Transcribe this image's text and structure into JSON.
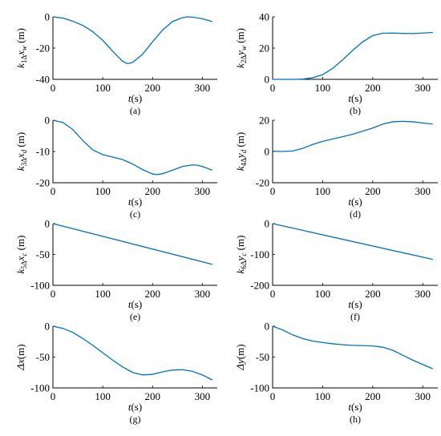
{
  "chart_data": [
    {
      "type": "line",
      "caption": "(a)",
      "xlabel": "t(s)",
      "ylabel": "k1Δ xw (m)",
      "ylabel_parts": {
        "k": "k",
        "sub": "1Δ",
        "var": "x",
        "varsub": "w",
        "unit": " (m)"
      },
      "xlim": [
        0,
        330
      ],
      "ylim": [
        -40,
        0
      ],
      "xticks": [
        0,
        100,
        200,
        300
      ],
      "yticks": [
        -40,
        -20,
        0
      ],
      "series": [
        {
          "color": "#0072BD",
          "x": [
            0,
            20,
            40,
            60,
            80,
            100,
            120,
            140,
            150,
            160,
            180,
            200,
            220,
            240,
            260,
            270,
            280,
            300,
            320
          ],
          "y": [
            0,
            -0.8,
            -2.8,
            -5.5,
            -9.5,
            -15,
            -22,
            -28.5,
            -30,
            -29.2,
            -24,
            -16,
            -8.5,
            -3,
            -0.5,
            0,
            -0.2,
            -1.2,
            -3
          ]
        }
      ]
    },
    {
      "type": "line",
      "caption": "(b)",
      "xlabel": "t(s)",
      "ylabel": "k2Δ yw (m)",
      "ylabel_parts": {
        "k": "k",
        "sub": "2Δ",
        "var": "y",
        "varsub": "w",
        "unit": " (m)"
      },
      "xlim": [
        0,
        330
      ],
      "ylim": [
        0,
        40
      ],
      "xticks": [
        0,
        100,
        200,
        300
      ],
      "yticks": [
        0,
        20,
        40
      ],
      "series": [
        {
          "color": "#0072BD",
          "x": [
            0,
            40,
            60,
            80,
            100,
            120,
            140,
            160,
            180,
            200,
            220,
            240,
            260,
            280,
            300,
            320
          ],
          "y": [
            0,
            0,
            0.2,
            1,
            3,
            7,
            12.5,
            18.5,
            24,
            28,
            29.5,
            29.6,
            29.4,
            29.3,
            29.6,
            30
          ]
        }
      ]
    },
    {
      "type": "line",
      "caption": "(c)",
      "xlabel": "t(s)",
      "ylabel": "k3Δ xd (m)",
      "ylabel_parts": {
        "k": "k",
        "sub": "3Δ",
        "var": "x",
        "varsub": "d",
        "unit": " (m)"
      },
      "xlim": [
        0,
        330
      ],
      "ylim": [
        -20,
        0
      ],
      "xticks": [
        0,
        100,
        200,
        300
      ],
      "yticks": [
        -20,
        -10,
        0
      ],
      "series": [
        {
          "color": "#0072BD",
          "x": [
            0,
            20,
            40,
            60,
            80,
            100,
            120,
            140,
            160,
            180,
            200,
            210,
            220,
            240,
            260,
            280,
            290,
            300,
            320
          ],
          "y": [
            0,
            -0.7,
            -3,
            -6.5,
            -9.5,
            -11,
            -11.8,
            -12.6,
            -14,
            -15.8,
            -17.2,
            -17.4,
            -17.1,
            -16,
            -14.8,
            -14.3,
            -14.4,
            -14.8,
            -16
          ]
        }
      ]
    },
    {
      "type": "line",
      "caption": "(d)",
      "xlabel": "t(s)",
      "ylabel": "k4Δ yd (m)",
      "ylabel_parts": {
        "k": "k",
        "sub": "4Δ",
        "var": "y",
        "varsub": "d",
        "unit": " (m)"
      },
      "xlim": [
        0,
        330
      ],
      "ylim": [
        -20,
        20
      ],
      "xticks": [
        0,
        100,
        200,
        300
      ],
      "yticks": [
        -20,
        0,
        20
      ],
      "series": [
        {
          "color": "#0072BD",
          "x": [
            0,
            20,
            40,
            60,
            80,
            100,
            120,
            140,
            160,
            180,
            200,
            220,
            240,
            260,
            280,
            300,
            320
          ],
          "y": [
            0.2,
            0,
            0.3,
            2,
            4.5,
            6.5,
            8,
            9.5,
            11,
            13,
            15,
            17.5,
            19,
            19.3,
            19,
            18.2,
            17.5
          ]
        }
      ]
    },
    {
      "type": "line",
      "caption": "(e)",
      "xlabel": "t(s)",
      "ylabel": "k5Δ xc (m)",
      "ylabel_parts": {
        "k": "k",
        "sub": "5Δ",
        "var": "x",
        "varsub": "c",
        "unit": " (m)"
      },
      "xlim": [
        0,
        330
      ],
      "ylim": [
        -100,
        0
      ],
      "xticks": [
        0,
        100,
        200,
        300
      ],
      "yticks": [
        -100,
        -50,
        0
      ],
      "series": [
        {
          "color": "#0072BD",
          "x": [
            0,
            320
          ],
          "y": [
            0,
            -66
          ]
        }
      ]
    },
    {
      "type": "line",
      "caption": "(f)",
      "xlabel": "t(s)",
      "ylabel": "k6Δ yc (m)",
      "ylabel_parts": {
        "k": "k",
        "sub": "6Δ",
        "var": "y",
        "varsub": "c",
        "unit": " (m)"
      },
      "xlim": [
        0,
        330
      ],
      "ylim": [
        -200,
        0
      ],
      "xticks": [
        0,
        100,
        200,
        300
      ],
      "yticks": [
        -200,
        -100,
        0
      ],
      "series": [
        {
          "color": "#0072BD",
          "x": [
            0,
            320
          ],
          "y": [
            0,
            -116
          ]
        }
      ]
    },
    {
      "type": "line",
      "caption": "(g)",
      "xlabel": "t(s)",
      "ylabel": "Δx(m)",
      "ylabel_parts": {
        "k": "",
        "sub": "",
        "var": "Δx",
        "varsub": "",
        "unit": "(m)"
      },
      "xlim": [
        0,
        330
      ],
      "ylim": [
        -100,
        0
      ],
      "xticks": [
        0,
        100,
        200,
        300
      ],
      "yticks": [
        -100,
        -50,
        0
      ],
      "series": [
        {
          "color": "#0072BD",
          "x": [
            0,
            20,
            40,
            60,
            80,
            100,
            120,
            140,
            160,
            180,
            200,
            220,
            240,
            260,
            280,
            300,
            320
          ],
          "y": [
            0,
            -3.5,
            -10,
            -20,
            -31,
            -43,
            -55,
            -66,
            -75,
            -79,
            -78,
            -74,
            -71,
            -70.5,
            -73,
            -79,
            -87
          ]
        }
      ]
    },
    {
      "type": "line",
      "caption": "(h)",
      "xlabel": "t(s)",
      "ylabel": "Δy(m)",
      "ylabel_parts": {
        "k": "",
        "sub": "",
        "var": "Δy",
        "varsub": "",
        "unit": "(m)"
      },
      "xlim": [
        0,
        330
      ],
      "ylim": [
        -100,
        0
      ],
      "xticks": [
        0,
        100,
        200,
        300
      ],
      "yticks": [
        -100,
        -50,
        0
      ],
      "series": [
        {
          "color": "#0072BD",
          "x": [
            0,
            20,
            40,
            60,
            80,
            100,
            120,
            140,
            160,
            180,
            200,
            220,
            240,
            260,
            280,
            300,
            320
          ],
          "y": [
            0,
            -6,
            -14,
            -20,
            -24,
            -26.5,
            -28.5,
            -30,
            -31,
            -31.5,
            -32,
            -34,
            -39,
            -47,
            -55,
            -62,
            -69
          ]
        }
      ]
    }
  ]
}
